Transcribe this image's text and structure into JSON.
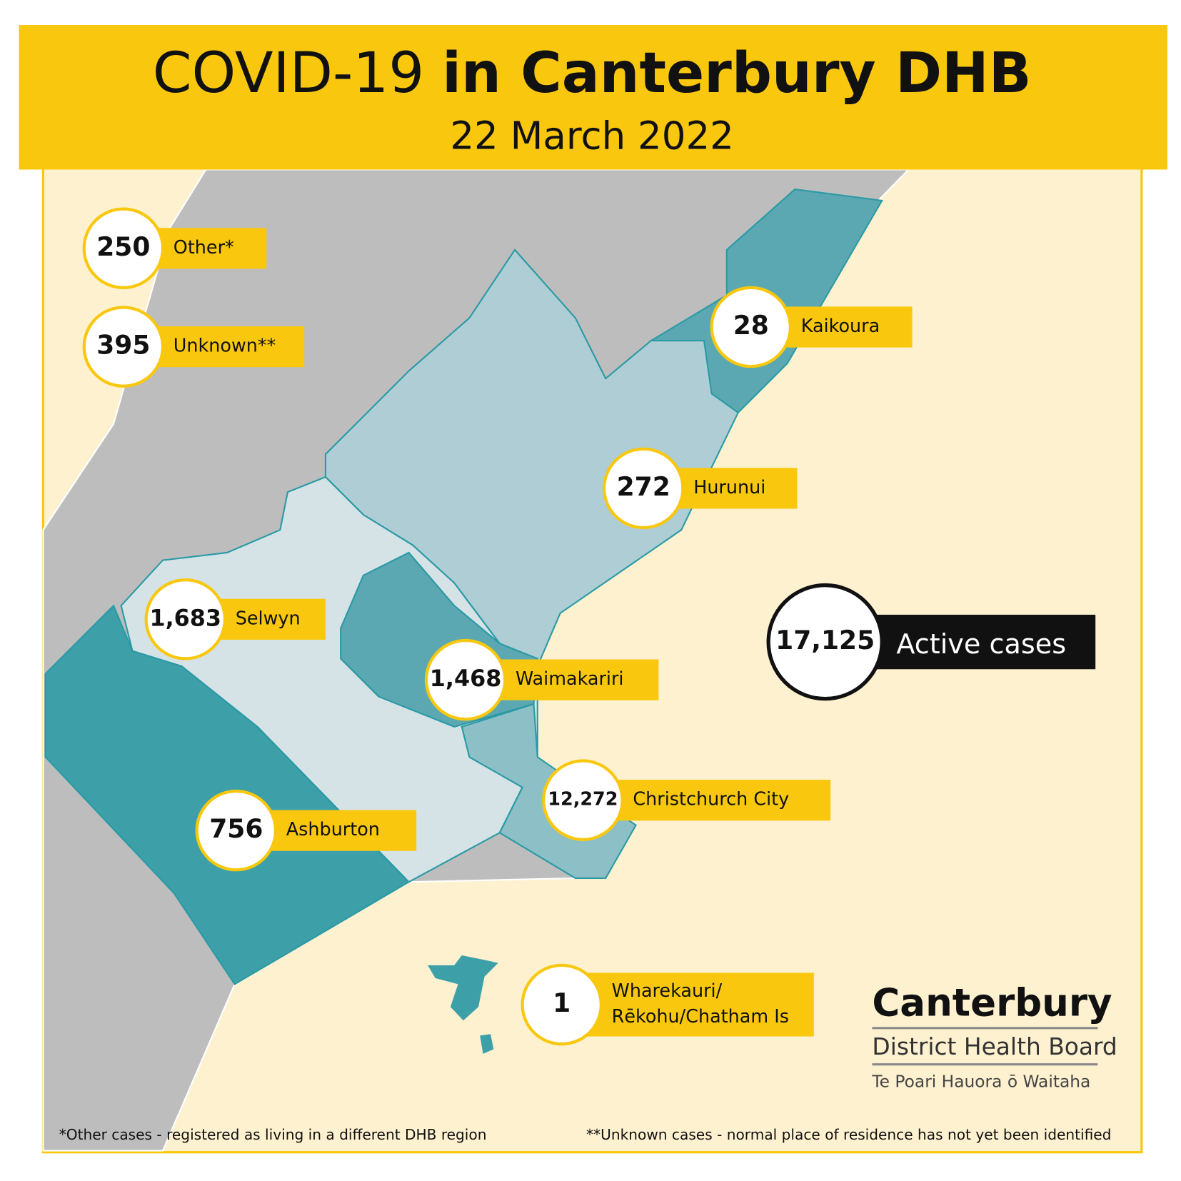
{
  "header": {
    "title": "COVID-19",
    "title_bold": "in Canterbury DHB",
    "date": "22 March 2022"
  },
  "regions": [
    {
      "count": "250",
      "name": [
        "Other*"
      ]
    },
    {
      "count": "395",
      "name": [
        "Unknown**"
      ]
    },
    {
      "count": "28",
      "name": [
        "Kaikoura"
      ]
    },
    {
      "count": "272",
      "name": [
        "Hurunui"
      ]
    },
    {
      "count": "1,683",
      "name": [
        "Selwyn"
      ]
    },
    {
      "count": "1,468",
      "name": [
        "Waimakariri"
      ]
    },
    {
      "count": "756",
      "name": [
        "Ashburton"
      ]
    },
    {
      "count": "12,272",
      "name": [
        "Christchurch City"
      ]
    },
    {
      "count": "1",
      "name": [
        "Wharekauri/",
        "Rēkohu/Chatham Is"
      ]
    }
  ],
  "total": {
    "count": "17,125",
    "label": "Active cases"
  },
  "logo": {
    "name": "Canterbury",
    "line2": "District Health Board",
    "line3": "Te Poari Hauora ō Waitaha"
  },
  "footnotes": [
    "*Other cases - registered as living in a different DHB region",
    "**Unknown cases - normal place of residence has not yet been identified"
  ]
}
